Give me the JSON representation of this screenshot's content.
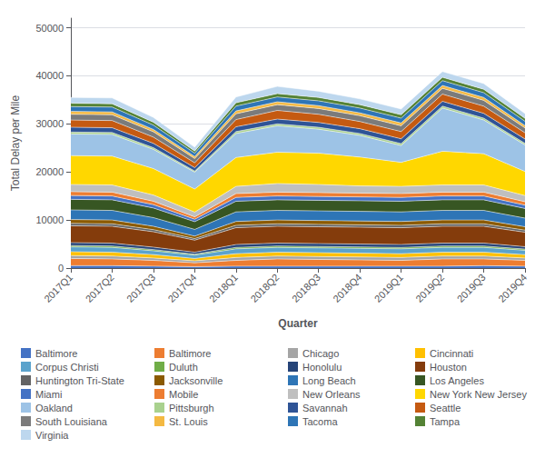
{
  "chart_data": {
    "type": "area",
    "stacked": true,
    "grid": true,
    "legend": "bottom",
    "xlabel": "Quarter",
    "ylabel": "Total Delay per Mile",
    "ylim": [
      0,
      52000
    ],
    "yticks": [
      0,
      10000,
      20000,
      30000,
      40000,
      50000
    ],
    "categories": [
      "2017Q1",
      "2017Q2",
      "2017Q3",
      "2017Q4",
      "2018Q1",
      "2018Q2",
      "2018Q3",
      "2018Q4",
      "2019Q1",
      "2019Q2",
      "2019Q3",
      "2019Q4"
    ],
    "series": [
      {
        "name": "Baltimore",
        "color": "#4472C4",
        "values": [
          500,
          500,
          400,
          300,
          400,
          400,
          400,
          400,
          400,
          400,
          500,
          400
        ]
      },
      {
        "name": "Baltimore",
        "color": "#ED7D31",
        "values": [
          1500,
          1400,
          1200,
          800,
          1200,
          1500,
          1400,
          1300,
          1200,
          1500,
          1400,
          1200
        ]
      },
      {
        "name": "Chicago",
        "color": "#A5A5A5",
        "values": [
          600,
          600,
          500,
          400,
          600,
          600,
          600,
          600,
          600,
          600,
          600,
          500
        ]
      },
      {
        "name": "Cincinnati",
        "color": "#FFC000",
        "values": [
          800,
          800,
          700,
          500,
          800,
          800,
          800,
          800,
          800,
          800,
          800,
          700
        ]
      },
      {
        "name": "Corpus Christi",
        "color": "#5BA3CC",
        "values": [
          1000,
          1000,
          800,
          700,
          1000,
          1000,
          1000,
          1000,
          1000,
          1000,
          1000,
          900
        ]
      },
      {
        "name": "Duluth",
        "color": "#70AD47",
        "values": [
          300,
          300,
          250,
          200,
          300,
          300,
          300,
          300,
          300,
          300,
          300,
          250
        ]
      },
      {
        "name": "Honolulu",
        "color": "#264478",
        "values": [
          600,
          600,
          500,
          400,
          600,
          600,
          600,
          600,
          600,
          600,
          600,
          500
        ]
      },
      {
        "name": "Houston",
        "color": "#843C0C",
        "values": [
          3500,
          3500,
          3200,
          2500,
          3500,
          3500,
          3500,
          3500,
          3500,
          3500,
          3500,
          3000
        ]
      },
      {
        "name": "Huntington Tri-State",
        "color": "#636363",
        "values": [
          500,
          500,
          450,
          350,
          500,
          500,
          500,
          500,
          500,
          500,
          500,
          450
        ]
      },
      {
        "name": "Jacksonville",
        "color": "#8B5A00",
        "values": [
          800,
          800,
          700,
          500,
          800,
          800,
          800,
          800,
          800,
          800,
          800,
          700
        ]
      },
      {
        "name": "Long Beach",
        "color": "#2E75B6",
        "values": [
          2000,
          2000,
          1800,
          1400,
          2000,
          2000,
          2000,
          2000,
          2000,
          2000,
          2000,
          1800
        ]
      },
      {
        "name": "Los Angeles",
        "color": "#375623",
        "values": [
          2200,
          2200,
          2000,
          1600,
          2200,
          2200,
          2200,
          2200,
          2200,
          2200,
          2200,
          2000
        ]
      },
      {
        "name": "Miami",
        "color": "#4472C4",
        "values": [
          800,
          800,
          700,
          500,
          800,
          800,
          800,
          800,
          800,
          800,
          800,
          700
        ]
      },
      {
        "name": "Mobile",
        "color": "#ED7D31",
        "values": [
          800,
          800,
          700,
          500,
          800,
          800,
          800,
          800,
          800,
          800,
          800,
          700
        ]
      },
      {
        "name": "New Orleans",
        "color": "#BFBFBF",
        "values": [
          1500,
          1500,
          1300,
          1000,
          1500,
          1800,
          1700,
          1500,
          1500,
          1500,
          1500,
          1300
        ]
      },
      {
        "name": "New York New Jersey",
        "color": "#FFD700",
        "values": [
          6000,
          6000,
          5500,
          4800,
          6000,
          6500,
          6500,
          6000,
          5000,
          7000,
          6500,
          5000
        ]
      },
      {
        "name": "Oakland",
        "color": "#9DC3E6",
        "values": [
          4500,
          4500,
          4000,
          3500,
          5000,
          5500,
          5000,
          4500,
          3500,
          9000,
          7000,
          5500
        ]
      },
      {
        "name": "Pittsburgh",
        "color": "#A9D18E",
        "values": [
          400,
          400,
          350,
          250,
          400,
          400,
          400,
          400,
          400,
          400,
          400,
          350
        ]
      },
      {
        "name": "Savannah",
        "color": "#2F5496",
        "values": [
          1000,
          1000,
          900,
          700,
          1000,
          1000,
          1000,
          1000,
          1000,
          1000,
          1000,
          900
        ]
      },
      {
        "name": "Seattle",
        "color": "#C55A11",
        "values": [
          1500,
          1500,
          1300,
          1000,
          1500,
          1800,
          1700,
          1500,
          1500,
          1500,
          1500,
          1300
        ]
      },
      {
        "name": "South Louisiana",
        "color": "#7B7B7B",
        "values": [
          1200,
          1200,
          1100,
          900,
          1200,
          1200,
          1200,
          1200,
          1200,
          1200,
          1200,
          1000
        ]
      },
      {
        "name": "St. Louis",
        "color": "#F4B942",
        "values": [
          600,
          600,
          500,
          400,
          600,
          600,
          600,
          600,
          600,
          600,
          600,
          500
        ]
      },
      {
        "name": "Tacoma",
        "color": "#2E75B6",
        "values": [
          1000,
          1000,
          900,
          700,
          1000,
          1000,
          1000,
          1000,
          1000,
          1000,
          1000,
          900
        ]
      },
      {
        "name": "Tampa",
        "color": "#548235",
        "values": [
          700,
          700,
          600,
          450,
          700,
          700,
          700,
          700,
          700,
          700,
          700,
          600
        ]
      },
      {
        "name": "Virginia",
        "color": "#BDD7EE",
        "values": [
          1200,
          1200,
          1000,
          800,
          1200,
          1500,
          1300,
          1200,
          1200,
          1200,
          1200,
          1000
        ]
      }
    ]
  }
}
